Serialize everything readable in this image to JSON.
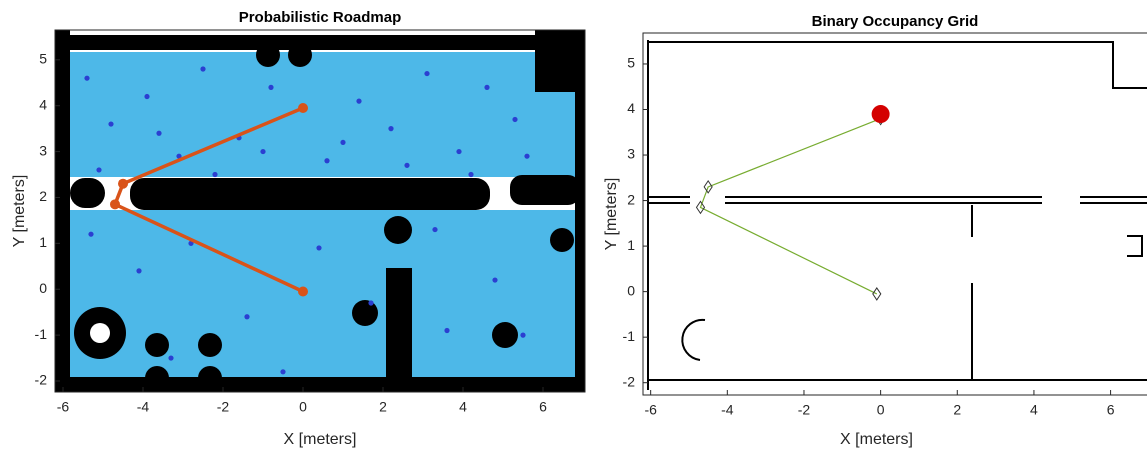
{
  "chart_data": [
    {
      "type": "map",
      "title": "Probabilistic Roadmap",
      "xlabel": "X [meters]",
      "ylabel": "Y [meters]",
      "xlim": [
        -6.2,
        7.05
      ],
      "ylim": [
        -2.24,
        5.65
      ],
      "xticks": [
        -6,
        -4,
        -2,
        0,
        2,
        4,
        6
      ],
      "yticks": [
        -2,
        -1,
        0,
        1,
        2,
        3,
        4,
        5
      ],
      "nodes": {
        "color": "#2b3fd1",
        "x": [
          -5.4,
          -4.8,
          -3.9,
          -3.1,
          -2.5,
          -1.6,
          -0.8,
          0.6,
          1.4,
          2.2,
          3.1,
          3.9,
          4.6,
          5.3,
          -5.1,
          -3.6,
          -2.2,
          -1.0,
          1.0,
          2.6,
          4.2,
          5.6,
          -5.3,
          -4.1,
          -2.8,
          -1.4,
          0.4,
          1.7,
          3.3,
          4.8,
          5.5,
          -3.3,
          -0.5,
          3.6
        ],
        "y": [
          4.6,
          3.6,
          4.2,
          2.9,
          4.8,
          3.3,
          4.4,
          2.8,
          4.1,
          3.5,
          4.7,
          3.0,
          4.4,
          3.7,
          2.6,
          3.4,
          2.5,
          3.0,
          3.2,
          2.7,
          2.5,
          2.9,
          1.2,
          0.4,
          1.0,
          -0.6,
          0.9,
          -0.3,
          1.3,
          0.2,
          -1.0,
          -1.5,
          -1.8,
          -0.9
        ]
      },
      "path": {
        "color": "#d95319",
        "x": [
          0,
          -4.5,
          -4.7,
          0
        ],
        "y": [
          3.95,
          2.3,
          1.85,
          -0.05
        ]
      }
    },
    {
      "type": "map",
      "title": "Binary Occupancy Grid",
      "xlabel": "X [meters]",
      "ylabel": "Y [meters]",
      "xlim": [
        -6.2,
        6.95
      ],
      "ylim": [
        -2.27,
        5.68
      ],
      "xticks": [
        -6,
        -4,
        -2,
        0,
        2,
        4,
        6
      ],
      "yticks": [
        -2,
        -1,
        0,
        1,
        2,
        3,
        4,
        5
      ],
      "path": {
        "color": "#77ac30",
        "x": [
          0,
          -4.5,
          -4.7,
          -0.1
        ],
        "y": [
          3.8,
          2.3,
          1.85,
          -0.05
        ]
      },
      "robot": {
        "color": "#d40000",
        "x": 0,
        "y": 3.9
      }
    }
  ]
}
